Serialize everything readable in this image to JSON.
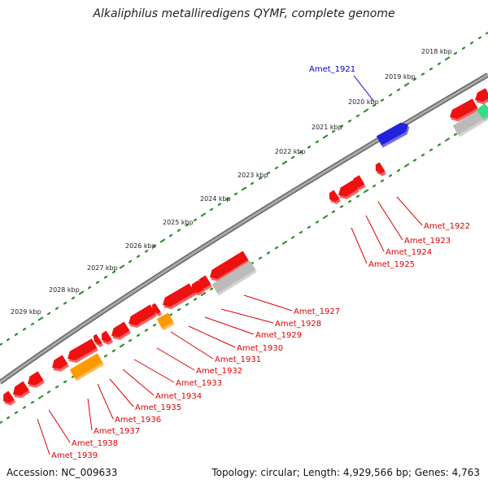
{
  "title": "Alkaliphilus metalliredigens QYMF, complete genome",
  "footer": {
    "accession": "Accession: NC_009633",
    "topology": "Topology: circular; Length: 4,929,566 bp; Genes: 4,763"
  },
  "colors": {
    "backbone": "#8c8c8c",
    "tick_dot": "#2a8a2a",
    "forward_gene": "#2222dd",
    "reverse_gene": "#ee1111",
    "orange_gene": "#ff9900",
    "grey_gene": "#bbbbbb",
    "green_gene": "#33dd88",
    "label_forward": "#0000cc",
    "label_reverse": "#dd0000"
  },
  "scale_labels": [
    "2018 kbp",
    "2019 kbp",
    "2020 kbp",
    "2021 kbp",
    "2022 kbp",
    "2023 kbp",
    "2024 kbp",
    "2025 kbp",
    "2026 kbp",
    "2027 kbp",
    "2028 kbp",
    "2029 kbp"
  ],
  "forward_labels": [
    "Amet_1921"
  ],
  "reverse_labels": [
    "Amet_1922",
    "Amet_1923",
    "Amet_1924",
    "Amet_1925",
    "Amet_1927",
    "Amet_1928",
    "Amet_1929",
    "Amet_1930",
    "Amet_1931",
    "Amet_1932",
    "Amet_1933",
    "Amet_1934",
    "Amet_1935",
    "Amet_1936",
    "Amet_1937",
    "Amet_1938",
    "Amet_1939"
  ]
}
